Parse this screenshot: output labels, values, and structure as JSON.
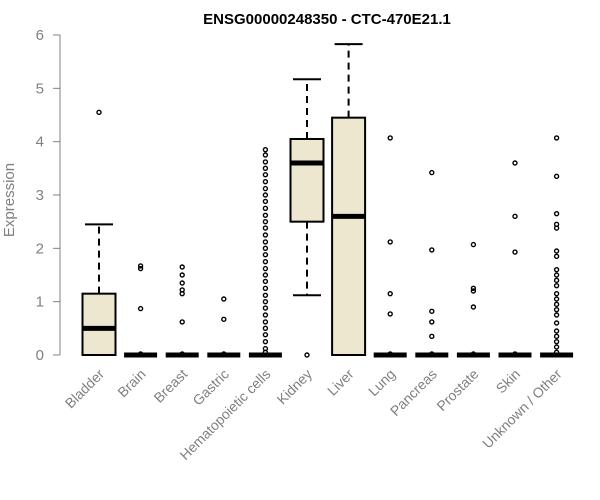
{
  "chart_data": {
    "type": "box",
    "title": "ENSG00000248350 - CTC-470E21.1",
    "xlabel": "",
    "ylabel": "Expression",
    "ylim": [
      0,
      6
    ],
    "yticks": [
      0,
      1,
      2,
      3,
      4,
      5,
      6
    ],
    "grid": false,
    "box_fill": "#ede7cf",
    "categories": [
      "Bladder",
      "Brain",
      "Breast",
      "Gastric",
      "Hematopoietic cells",
      "Kidney",
      "Liver",
      "Lung",
      "Pancreas",
      "Prostate",
      "Skin",
      "Unknown / Other"
    ],
    "boxes": [
      {
        "category": "Bladder",
        "q1": 0.0,
        "median": 0.5,
        "q3": 1.15,
        "whisker_low": 0.0,
        "whisker_high": 2.45,
        "outliers": [
          4.55
        ]
      },
      {
        "category": "Brain",
        "q1": 0.0,
        "median": 0.0,
        "q3": 0.0,
        "whisker_low": 0.0,
        "whisker_high": 0.0,
        "outliers": [
          1.67,
          1.62,
          0.87,
          0.02
        ]
      },
      {
        "category": "Breast",
        "q1": 0.0,
        "median": 0.0,
        "q3": 0.0,
        "whisker_low": 0.0,
        "whisker_high": 0.0,
        "outliers": [
          1.65,
          1.5,
          1.35,
          1.22,
          1.15,
          0.62,
          0.02
        ]
      },
      {
        "category": "Gastric",
        "q1": 0.0,
        "median": 0.0,
        "q3": 0.0,
        "whisker_low": 0.0,
        "whisker_high": 0.0,
        "outliers": [
          1.05,
          0.67,
          0.02
        ]
      },
      {
        "category": "Hematopoietic cells",
        "q1": 0.0,
        "median": 0.0,
        "q3": 0.0,
        "whisker_low": 0.0,
        "whisker_high": 0.0,
        "outliers": [
          3.85,
          3.75,
          3.62,
          3.5,
          3.38,
          3.25,
          3.12,
          3.0,
          2.88,
          2.75,
          2.62,
          2.5,
          2.38,
          2.25,
          2.12,
          2.0,
          1.88,
          1.75,
          1.62,
          1.5,
          1.38,
          1.25,
          1.12,
          1.0,
          0.88,
          0.75,
          0.62,
          0.5,
          0.38,
          0.25,
          0.12,
          0.05
        ]
      },
      {
        "category": "Kidney",
        "q1": 2.5,
        "median": 3.6,
        "q3": 4.05,
        "whisker_low": 1.12,
        "whisker_high": 5.17,
        "outliers": [
          0.0
        ]
      },
      {
        "category": "Liver",
        "q1": 0.0,
        "median": 2.6,
        "q3": 4.45,
        "whisker_low": 0.0,
        "whisker_high": 5.83,
        "outliers": []
      },
      {
        "category": "Lung",
        "q1": 0.0,
        "median": 0.0,
        "q3": 0.0,
        "whisker_low": 0.0,
        "whisker_high": 0.0,
        "outliers": [
          4.07,
          2.12,
          1.15,
          0.77,
          0.02
        ]
      },
      {
        "category": "Pancreas",
        "q1": 0.0,
        "median": 0.0,
        "q3": 0.0,
        "whisker_low": 0.0,
        "whisker_high": 0.0,
        "outliers": [
          3.42,
          1.97,
          0.82,
          0.62,
          0.35,
          0.02
        ]
      },
      {
        "category": "Prostate",
        "q1": 0.0,
        "median": 0.0,
        "q3": 0.0,
        "whisker_low": 0.0,
        "whisker_high": 0.0,
        "outliers": [
          2.07,
          1.25,
          1.2,
          0.9,
          0.02
        ]
      },
      {
        "category": "Skin",
        "q1": 0.0,
        "median": 0.0,
        "q3": 0.0,
        "whisker_low": 0.0,
        "whisker_high": 0.0,
        "outliers": [
          3.6,
          2.6,
          1.93,
          0.02
        ]
      },
      {
        "category": "Unknown / Other",
        "q1": 0.0,
        "median": 0.0,
        "q3": 0.0,
        "whisker_low": 0.0,
        "whisker_high": 0.0,
        "outliers": [
          4.07,
          3.35,
          2.65,
          2.45,
          2.38,
          1.95,
          1.85,
          1.6,
          1.5,
          1.4,
          1.3,
          1.15,
          1.05,
          0.95,
          0.85,
          0.75,
          0.6,
          0.45,
          0.35,
          0.25,
          0.15,
          0.05
        ]
      }
    ]
  }
}
